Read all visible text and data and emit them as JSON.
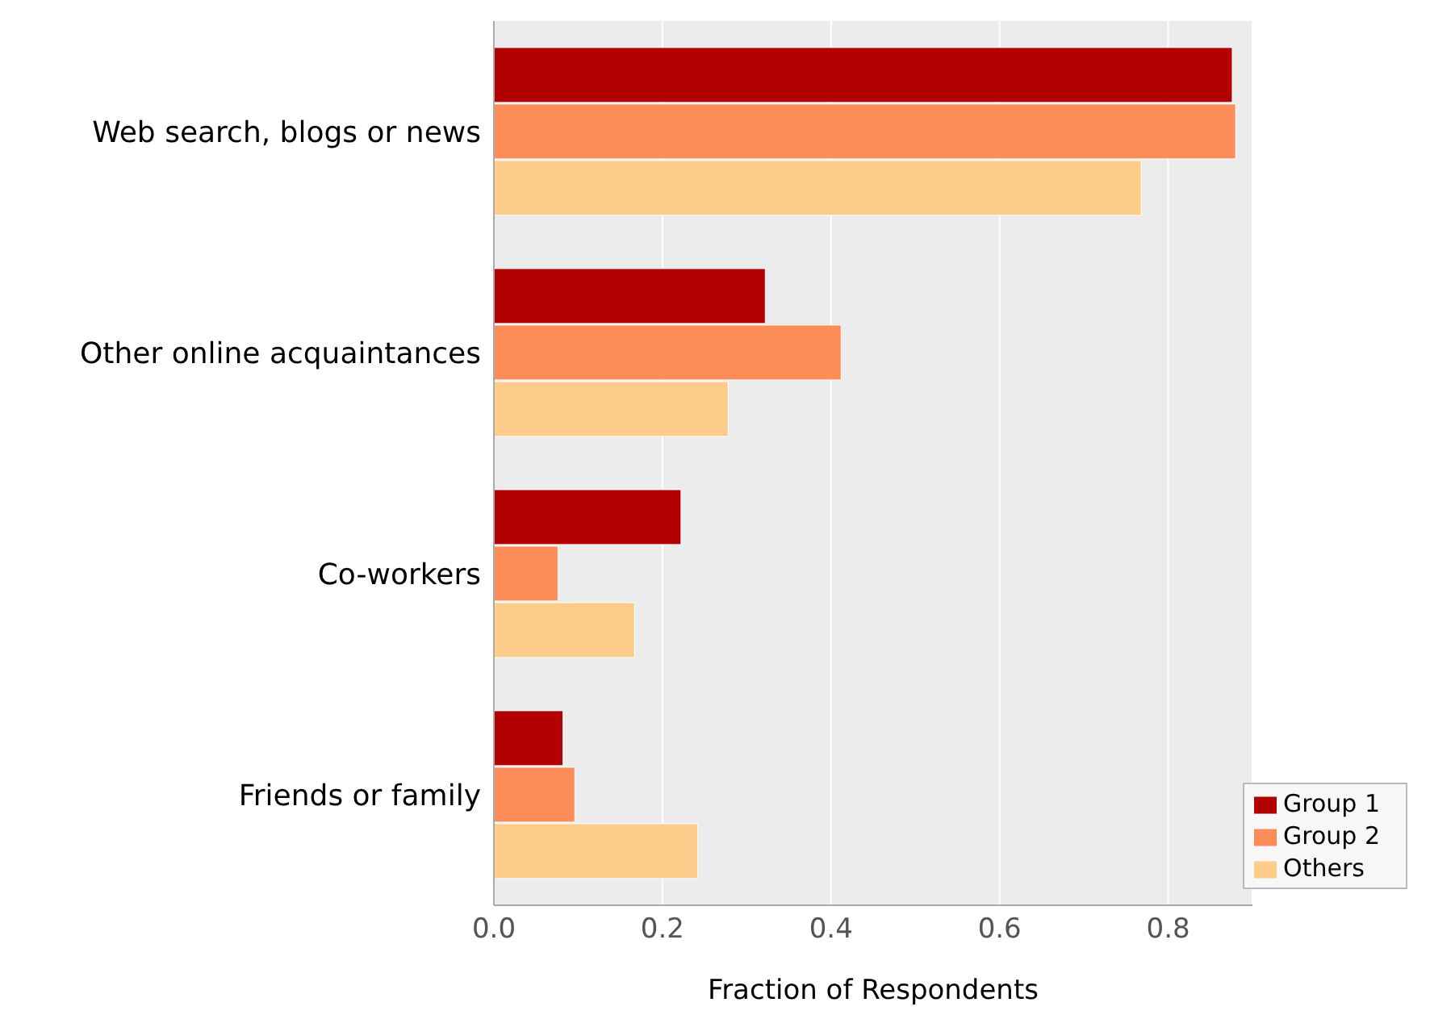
{
  "chart_data": {
    "type": "bar",
    "orientation": "horizontal",
    "xlabel": "Fraction of Respondents",
    "categories": [
      "Web search, blogs or news",
      "Other online acquaintances",
      "Co-workers",
      "Friends or family"
    ],
    "series": [
      {
        "name": "Group 1",
        "color": "#b30000",
        "values": [
          0.876,
          0.322,
          0.222,
          0.082
        ]
      },
      {
        "name": "Group 2",
        "color": "#fc8d59",
        "values": [
          0.88,
          0.412,
          0.076,
          0.096
        ]
      },
      {
        "name": "Others",
        "color": "#fdcc8a",
        "values": [
          0.768,
          0.278,
          0.167,
          0.242
        ]
      }
    ],
    "xlim": [
      0,
      0.9
    ],
    "xticks": [
      {
        "value": 0,
        "label": "0.0"
      },
      0.2,
      0.4,
      0.6,
      0.8
    ],
    "grid": "x",
    "legend": "bottom right"
  }
}
